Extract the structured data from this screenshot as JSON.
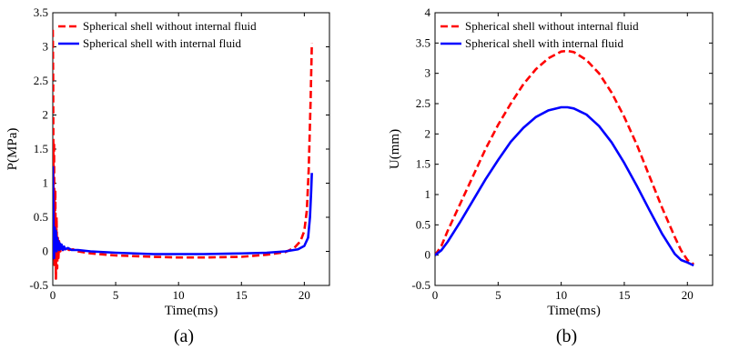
{
  "chart_data": [
    {
      "type": "line",
      "panel_label": "(a)",
      "xlabel": "Time(ms)",
      "ylabel": "P(MPa)",
      "xlim": [
        0,
        22
      ],
      "ylim": [
        -0.5,
        3.5
      ],
      "xticks": [
        "0",
        "5",
        "10",
        "15",
        "20"
      ],
      "yticks": [
        "-0.5",
        "0",
        "0.5",
        "1",
        "1.5",
        "2",
        "2.5",
        "3",
        "3.5"
      ],
      "grid": false,
      "legend_position": "top-left",
      "series": [
        {
          "name": "Spherical shell without internal fluid",
          "color": "#ff0000",
          "style": "dashed",
          "x": [
            0,
            0.03,
            0.06,
            0.1,
            0.14,
            0.2,
            0.25,
            0.3,
            0.35,
            0.4,
            0.45,
            0.5,
            0.6,
            0.7,
            0.8,
            1.0,
            1.3,
            1.6,
            2.0,
            3.0,
            5.0,
            8.0,
            10.0,
            12.0,
            15.0,
            17.0,
            18.5,
            19.2,
            19.7,
            20.0,
            20.2,
            20.35,
            20.5,
            20.6
          ],
          "y": [
            3.25,
            2.5,
            0.6,
            1.6,
            -0.2,
            0.9,
            -0.4,
            0.5,
            -0.25,
            0.2,
            -0.1,
            0.15,
            0.0,
            0.08,
            0.02,
            0.05,
            0.02,
            0.03,
            0.0,
            -0.03,
            -0.06,
            -0.08,
            -0.09,
            -0.09,
            -0.08,
            -0.05,
            -0.01,
            0.05,
            0.15,
            0.3,
            0.6,
            1.2,
            2.2,
            3.05
          ]
        },
        {
          "name": "Spherical shell with internal fluid",
          "color": "#0000ff",
          "style": "solid",
          "x": [
            0,
            0.05,
            0.1,
            0.15,
            0.2,
            0.25,
            0.3,
            0.35,
            0.4,
            0.45,
            0.5,
            0.55,
            0.6,
            0.7,
            0.8,
            0.9,
            1.0,
            1.2,
            1.5,
            2.0,
            3.0,
            5.0,
            8.0,
            10.0,
            12.0,
            15.0,
            17.0,
            18.5,
            19.5,
            20.0,
            20.3,
            20.45,
            20.55,
            20.6
          ],
          "y": [
            1.25,
            0.5,
            -0.1,
            0.35,
            0.05,
            0.3,
            0.0,
            0.2,
            0.05,
            0.15,
            0.02,
            0.12,
            0.03,
            0.1,
            0.02,
            0.07,
            0.03,
            0.05,
            0.02,
            0.02,
            0.0,
            -0.02,
            -0.04,
            -0.04,
            -0.04,
            -0.03,
            -0.02,
            0.0,
            0.03,
            0.08,
            0.2,
            0.5,
            0.9,
            1.15
          ]
        }
      ]
    },
    {
      "type": "line",
      "panel_label": "(b)",
      "xlabel": "Time(ms)",
      "ylabel": "U(mm)",
      "xlim": [
        0,
        22
      ],
      "ylim": [
        -0.5,
        4
      ],
      "xticks": [
        "0",
        "5",
        "10",
        "15",
        "20"
      ],
      "yticks": [
        "-0.5",
        "0",
        "0.5",
        "1",
        "1.5",
        "2",
        "2.5",
        "3",
        "3.5",
        "4"
      ],
      "grid": false,
      "legend_position": "top-left",
      "series": [
        {
          "name": "Spherical shell without internal fluid",
          "color": "#ff0000",
          "style": "dashed",
          "x": [
            0,
            0.5,
            1,
            2,
            3,
            4,
            5,
            6,
            7,
            8,
            9,
            10,
            10.5,
            11,
            12,
            13,
            14,
            15,
            16,
            17,
            18,
            19,
            19.5,
            20,
            20.5
          ],
          "y": [
            0.0,
            0.15,
            0.4,
            0.85,
            1.3,
            1.75,
            2.15,
            2.5,
            2.82,
            3.07,
            3.25,
            3.36,
            3.37,
            3.35,
            3.22,
            3.0,
            2.68,
            2.28,
            1.82,
            1.3,
            0.78,
            0.3,
            0.08,
            -0.08,
            -0.15
          ]
        },
        {
          "name": "Spherical shell with internal fluid",
          "color": "#0000ff",
          "style": "solid",
          "x": [
            0,
            0.5,
            1,
            2,
            3,
            4,
            5,
            6,
            7,
            8,
            9,
            10,
            10.5,
            11,
            12,
            13,
            14,
            15,
            16,
            17,
            18,
            19,
            19.5,
            20,
            20.5
          ],
          "y": [
            0.0,
            0.08,
            0.22,
            0.55,
            0.9,
            1.25,
            1.57,
            1.87,
            2.1,
            2.28,
            2.39,
            2.44,
            2.44,
            2.42,
            2.32,
            2.13,
            1.86,
            1.52,
            1.14,
            0.74,
            0.35,
            0.02,
            -0.08,
            -0.12,
            -0.17
          ]
        }
      ]
    }
  ]
}
